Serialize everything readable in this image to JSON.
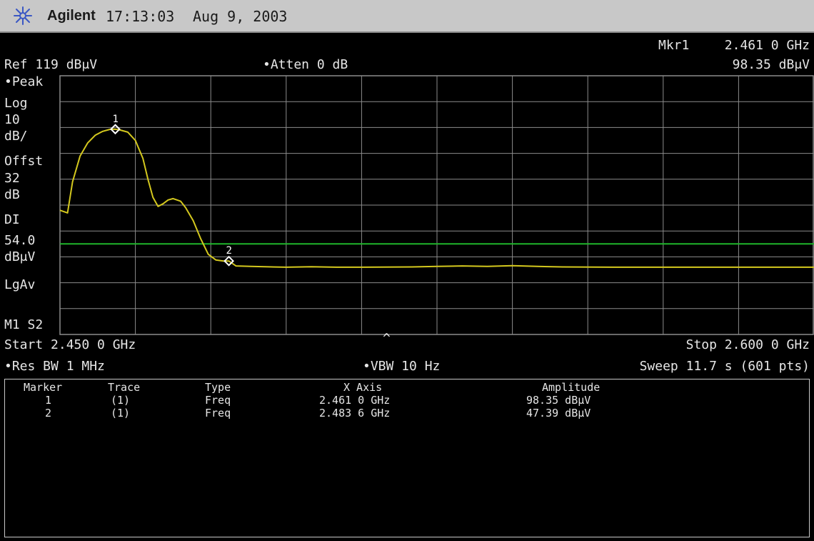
{
  "header": {
    "brand": "Agilent",
    "time": "17:13:03",
    "date": "Aug 9, 2003",
    "logo_icon": "agilent-spark-icon"
  },
  "display": {
    "marker_readout_label": "Mkr1",
    "marker_readout_freq": "2.461 0 GHz",
    "marker_readout_amp": "98.35 dBμV",
    "ref_level": "Ref 119 dBμV",
    "atten": "•Atten 0 dB",
    "left_panel": [
      "•Peak",
      "Log",
      "10",
      "dB/",
      "Offst",
      "32",
      "dB",
      "DI",
      "54.0",
      "dBμV",
      "LgAv",
      "M1  S2"
    ],
    "start": "Start 2.450 0 GHz",
    "stop": "Stop 2.600 0 GHz",
    "res_bw": "•Res BW 1 MHz",
    "vbw": "•VBW 10 Hz",
    "sweep": "Sweep 11.7 s (601 pts)",
    "center_caret": "^"
  },
  "colors": {
    "trace": "#d4c81e",
    "display_line": "#1fb52a",
    "grid": "#8c8c8c",
    "marker": "#ffffff"
  },
  "chart_data": {
    "type": "line",
    "x_unit": "GHz",
    "y_unit": "dBμV",
    "xlim": [
      2.45,
      2.6
    ],
    "ylim": [
      19,
      119
    ],
    "y_divisions": 10,
    "display_line": 54.0,
    "series": [
      {
        "x": [
          2.45,
          2.4515,
          2.4525,
          2.454,
          2.4555,
          2.457,
          2.4585,
          2.46,
          2.461,
          2.462,
          2.4635,
          2.465,
          2.4665,
          2.4675,
          2.4685,
          2.4695,
          2.4705,
          2.4715,
          2.4725,
          2.474,
          2.475,
          2.4765,
          2.478,
          2.4795,
          2.481,
          2.4825,
          2.4836,
          2.485,
          2.488,
          2.495,
          2.5,
          2.505,
          2.51,
          2.52,
          2.525,
          2.53,
          2.535,
          2.54,
          2.545,
          2.55,
          2.56,
          2.57,
          2.58,
          2.59,
          2.6
        ],
        "y": [
          67.0,
          66.0,
          78.0,
          88.0,
          93.0,
          96.0,
          97.5,
          98.3,
          98.35,
          98.0,
          97.2,
          94.0,
          87.0,
          79.0,
          72.0,
          68.5,
          69.5,
          71.0,
          71.5,
          70.5,
          68.0,
          63.0,
          56.0,
          50.0,
          47.8,
          47.4,
          47.39,
          45.5,
          45.3,
          45.0,
          45.2,
          45.0,
          45.0,
          45.1,
          45.3,
          45.5,
          45.3,
          45.6,
          45.3,
          45.1,
          45.0,
          45.0,
          45.0,
          45.0,
          45.0
        ]
      }
    ],
    "markers": [
      {
        "label": "1",
        "x": 2.461,
        "y": 98.35
      },
      {
        "label": "2",
        "x": 2.4836,
        "y": 47.39
      }
    ]
  },
  "marker_table": {
    "headers": [
      "Marker",
      "Trace",
      "Type",
      "X Axis",
      "Amplitude"
    ],
    "rows": [
      [
        "1",
        "(1)",
        "Freq",
        "2.461 0 GHz",
        "98.35 dBμV"
      ],
      [
        "2",
        "(1)",
        "Freq",
        "2.483 6 GHz",
        "47.39 dBμV"
      ]
    ]
  }
}
